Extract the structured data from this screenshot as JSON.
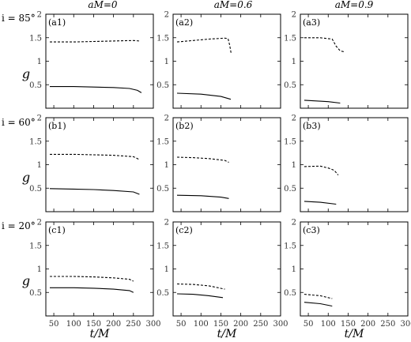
{
  "columns": [
    "aM=0",
    "aM=0.6",
    "aM=0.9"
  ],
  "rows": [
    "i = 85°",
    "i = 60°",
    "i = 20°"
  ],
  "ylabel": "g",
  "xlabel": "t/M",
  "chart_data": {
    "type": "line",
    "xlim": [
      30,
      300
    ],
    "ylim": [
      0,
      2
    ],
    "xticks": [
      50,
      100,
      150,
      200,
      250,
      300
    ],
    "yticks": [
      0.5,
      1,
      1.5,
      2
    ],
    "panels": [
      {
        "label": "(a1)",
        "series": [
          {
            "style": "dashed",
            "x": [
              40,
              100,
              150,
              200,
              250,
              265
            ],
            "y": [
              1.41,
              1.41,
              1.42,
              1.43,
              1.44,
              1.43
            ]
          },
          {
            "style": "solid",
            "x": [
              40,
              100,
              150,
              200,
              240,
              260,
              270
            ],
            "y": [
              0.46,
              0.46,
              0.45,
              0.44,
              0.42,
              0.38,
              0.33
            ]
          }
        ]
      },
      {
        "label": "(a2)",
        "series": [
          {
            "style": "dashed",
            "x": [
              40,
              80,
              120,
              160,
              168,
              172,
              176
            ],
            "y": [
              1.41,
              1.44,
              1.47,
              1.49,
              1.48,
              1.35,
              1.16
            ]
          },
          {
            "style": "solid",
            "x": [
              40,
              100,
              150,
              175
            ],
            "y": [
              0.32,
              0.3,
              0.25,
              0.19
            ]
          }
        ]
      },
      {
        "label": "(a3)",
        "series": [
          {
            "style": "dashed",
            "x": [
              40,
              80,
              110,
              120,
              130,
              140
            ],
            "y": [
              1.5,
              1.5,
              1.47,
              1.32,
              1.22,
              1.2
            ]
          },
          {
            "style": "solid",
            "x": [
              40,
              100,
              130
            ],
            "y": [
              0.17,
              0.14,
              0.11
            ]
          }
        ]
      },
      {
        "label": "(b1)",
        "series": [
          {
            "style": "dashed",
            "x": [
              40,
              100,
              150,
              200,
              250,
              265
            ],
            "y": [
              1.22,
              1.22,
              1.21,
              1.2,
              1.17,
              1.11
            ]
          },
          {
            "style": "solid",
            "x": [
              40,
              100,
              150,
              200,
              250,
              265
            ],
            "y": [
              0.49,
              0.48,
              0.47,
              0.45,
              0.42,
              0.37
            ]
          }
        ]
      },
      {
        "label": "(b2)",
        "series": [
          {
            "style": "dashed",
            "x": [
              40,
              80,
              120,
              160,
              170
            ],
            "y": [
              1.16,
              1.15,
              1.13,
              1.09,
              1.05
            ]
          },
          {
            "style": "solid",
            "x": [
              40,
              100,
              150,
              170
            ],
            "y": [
              0.35,
              0.34,
              0.31,
              0.28
            ]
          }
        ]
      },
      {
        "label": "(b3)",
        "series": [
          {
            "style": "dashed",
            "x": [
              40,
              80,
              100,
              115,
              125
            ],
            "y": [
              0.96,
              0.97,
              0.93,
              0.88,
              0.78
            ]
          },
          {
            "style": "solid",
            "x": [
              40,
              80,
              120
            ],
            "y": [
              0.22,
              0.2,
              0.16
            ]
          }
        ]
      },
      {
        "label": "(c1)",
        "series": [
          {
            "style": "dashed",
            "x": [
              40,
              100,
              150,
              200,
              240,
              250
            ],
            "y": [
              0.84,
              0.84,
              0.83,
              0.81,
              0.78,
              0.74
            ]
          },
          {
            "style": "solid",
            "x": [
              40,
              100,
              150,
              200,
              240,
              250
            ],
            "y": [
              0.6,
              0.6,
              0.59,
              0.57,
              0.54,
              0.5
            ]
          }
        ]
      },
      {
        "label": "(c2)",
        "series": [
          {
            "style": "dashed",
            "x": [
              40,
              80,
              120,
              160
            ],
            "y": [
              0.68,
              0.67,
              0.64,
              0.57
            ]
          },
          {
            "style": "solid",
            "x": [
              40,
              80,
              120,
              155
            ],
            "y": [
              0.47,
              0.46,
              0.43,
              0.39
            ]
          }
        ]
      },
      {
        "label": "(c3)",
        "series": [
          {
            "style": "dashed",
            "x": [
              40,
              80,
              110
            ],
            "y": [
              0.46,
              0.43,
              0.37
            ]
          },
          {
            "style": "solid",
            "x": [
              40,
              80,
              110
            ],
            "y": [
              0.29,
              0.26,
              0.21
            ]
          }
        ]
      }
    ]
  }
}
